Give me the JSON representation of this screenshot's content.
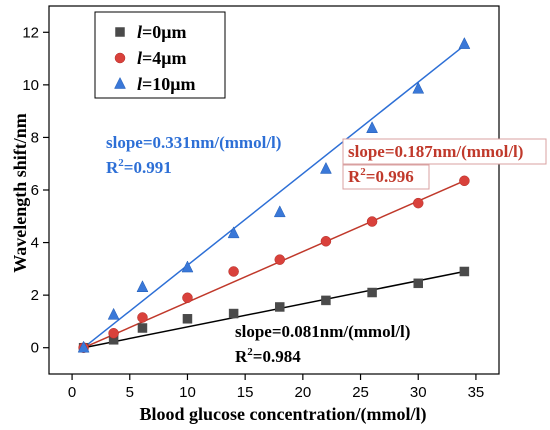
{
  "chart_data": {
    "type": "scatter",
    "xlabel": "Blood glucose concentration/(mmol/l)",
    "ylabel": "Wavelength shift/nm",
    "xlim": [
      -2,
      37
    ],
    "ylim": [
      -1,
      13
    ],
    "xticks": [
      0,
      5,
      10,
      15,
      20,
      25,
      30,
      35
    ],
    "yticks": [
      0,
      2,
      4,
      6,
      8,
      10,
      12
    ],
    "grid": false,
    "legend_position": "top-left",
    "series": [
      {
        "name_italic": "l",
        "name_rest": "=0μm",
        "marker": "square",
        "color": "#4a4a4a",
        "line_color": "#000000",
        "x": [
          1,
          3.6,
          6.1,
          10,
          14,
          18,
          22,
          26,
          30,
          34
        ],
        "y": [
          0.0,
          0.3,
          0.75,
          1.1,
          1.3,
          1.55,
          1.8,
          2.1,
          2.45,
          2.9
        ],
        "fit": [
          [
            1,
            0.0
          ],
          [
            34,
            2.9
          ]
        ]
      },
      {
        "name_italic": "l",
        "name_rest": "=4μm",
        "marker": "circle",
        "color": "#d9413b",
        "line_color": "#c0392b",
        "x": [
          1,
          3.6,
          6.1,
          10,
          14,
          18,
          22,
          26,
          30,
          34
        ],
        "y": [
          0.0,
          0.55,
          1.15,
          1.9,
          2.9,
          3.35,
          4.05,
          4.8,
          5.5,
          6.35
        ],
        "fit": [
          [
            1,
            0.0
          ],
          [
            34,
            6.35
          ]
        ]
      },
      {
        "name_italic": "l",
        "name_rest": "=10μm",
        "marker": "triangle",
        "color": "#3a78d8",
        "line_color": "#2d6fd6",
        "x": [
          1,
          3.6,
          6.1,
          10,
          14,
          18,
          22,
          26,
          30,
          34
        ],
        "y": [
          0.0,
          1.25,
          2.3,
          3.05,
          4.35,
          5.15,
          6.8,
          8.35,
          9.85,
          11.55
        ],
        "fit": [
          [
            1,
            0.0
          ],
          [
            34,
            11.5
          ]
        ]
      }
    ],
    "annotations": [
      {
        "slope": "slope=0.331nm/(mmol/l)",
        "r2_prefix": "R",
        "r2_sup": "2",
        "r2_value": "=0.991",
        "color": "#2d6fd6",
        "boxed": false
      },
      {
        "slope": "slope=0.187nm/(mmol/l)",
        "r2_prefix": "R",
        "r2_sup": "2",
        "r2_value": "=0.996",
        "color": "#c0392b",
        "boxed": true
      },
      {
        "slope": "slope=0.081nm/(mmol/l)",
        "r2_prefix": "R",
        "r2_sup": "2",
        "r2_value": "=0.984",
        "color": "#000000",
        "boxed": false
      }
    ]
  }
}
